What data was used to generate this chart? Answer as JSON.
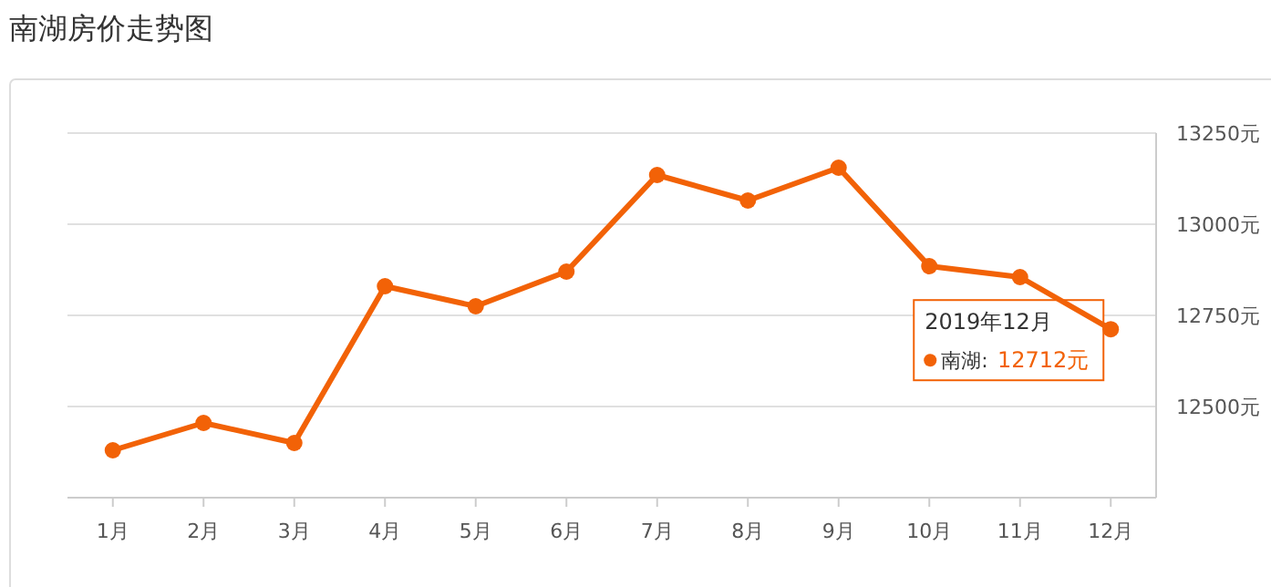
{
  "chart_data": {
    "type": "line",
    "title": "南湖房价走势图",
    "categories": [
      "1月",
      "2月",
      "3月",
      "4月",
      "5月",
      "6月",
      "7月",
      "8月",
      "9月",
      "10月",
      "11月",
      "12月"
    ],
    "series": [
      {
        "name": "南湖:",
        "color": "#f26207",
        "values": [
          12380,
          12455,
          12400,
          12830,
          12775,
          12870,
          13135,
          13065,
          13155,
          12885,
          12855,
          12712
        ],
        "value_labels": [
          null,
          null,
          null,
          null,
          null,
          null,
          null,
          null,
          null,
          null,
          null,
          "12712元"
        ]
      }
    ],
    "annotations": [
      {
        "text": "2019年12月",
        "x": "12月",
        "y": 12712
      }
    ],
    "ylim": [
      12250,
      13250
    ],
    "yticks": [
      {
        "value": 12500,
        "label": "12500元"
      },
      {
        "value": 12750,
        "label": "12750元"
      },
      {
        "value": 13000,
        "label": "13000元"
      },
      {
        "value": 13250,
        "label": "13250元"
      }
    ],
    "grid": "y",
    "marker": "circle",
    "line_style": "solid"
  }
}
